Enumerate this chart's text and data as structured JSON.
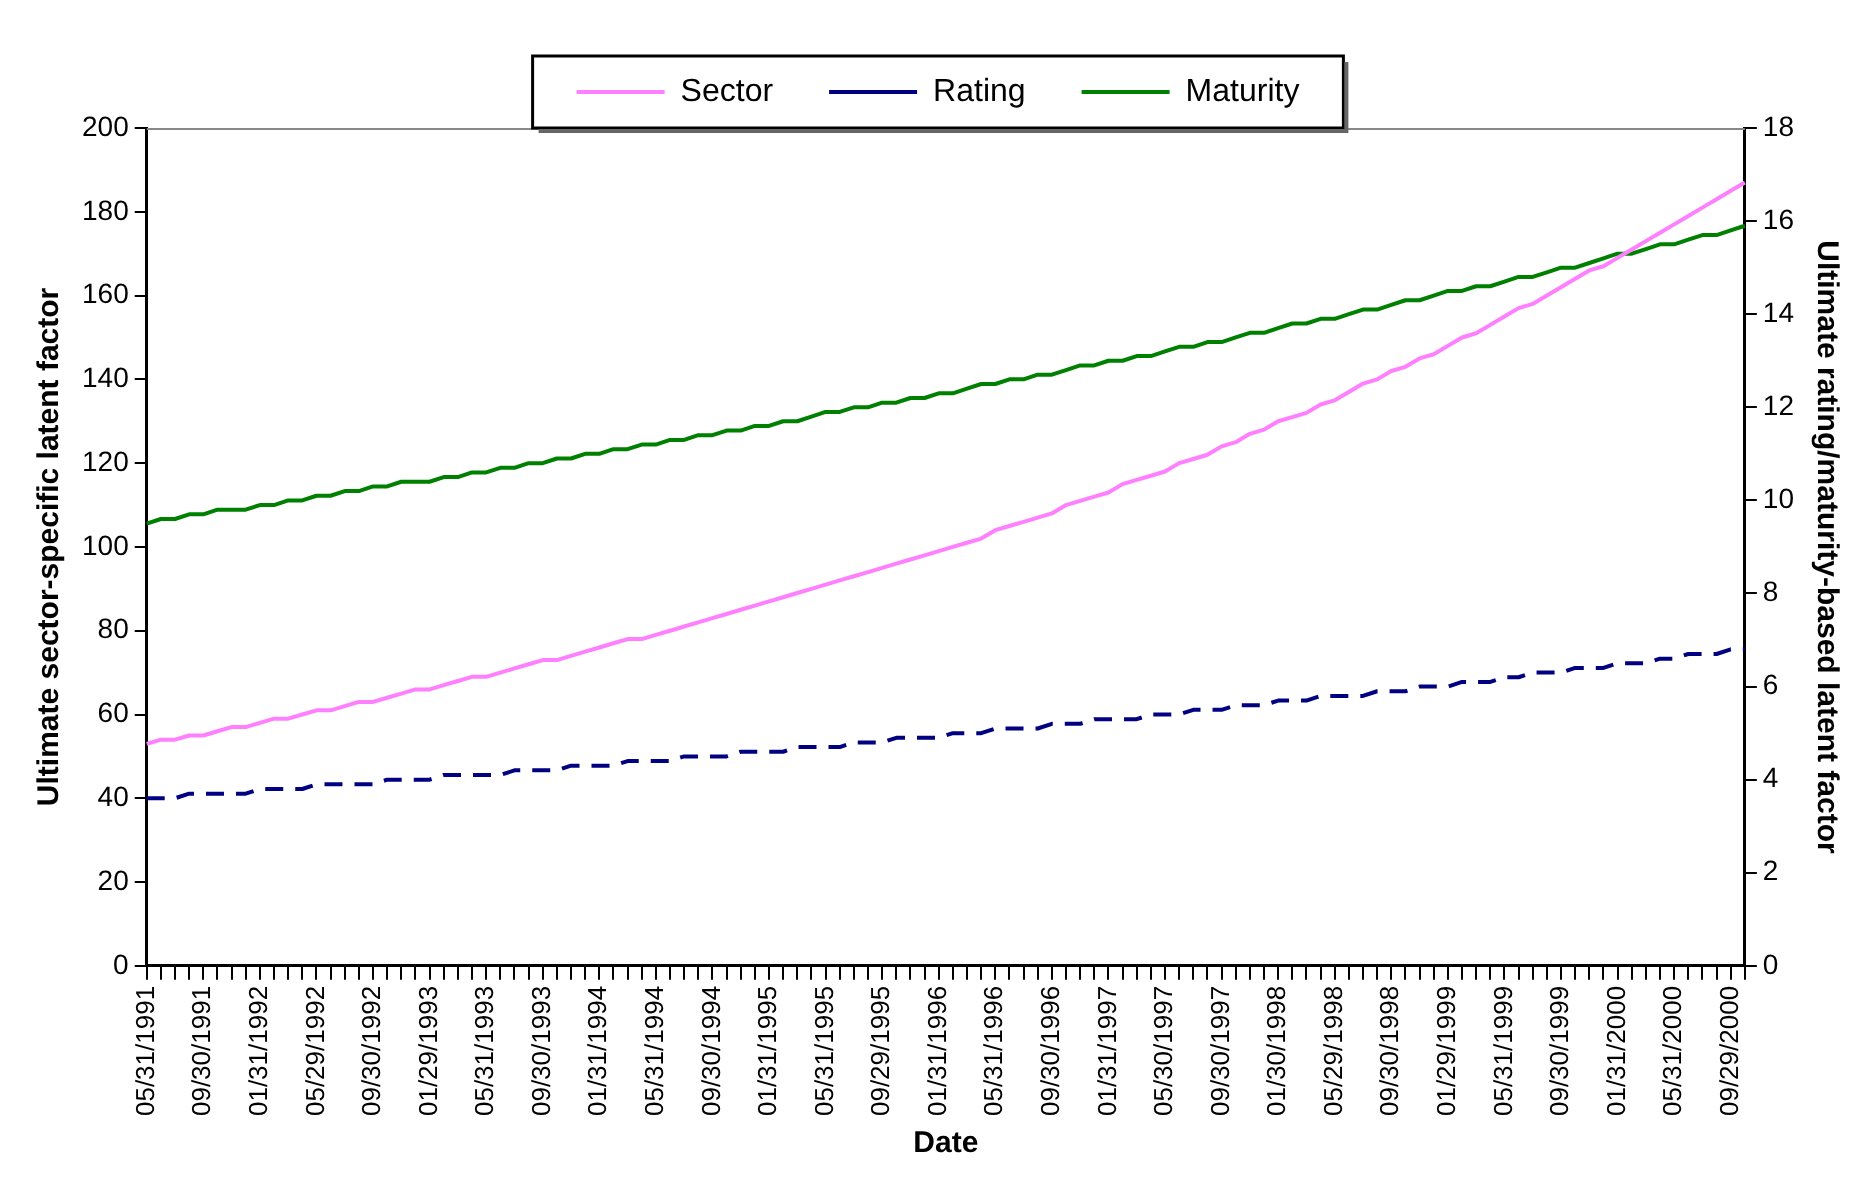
{
  "chart_data": {
    "type": "line",
    "xlabel": "Date",
    "ylabel": "Ultimate sector-specific latent factor",
    "y2label": "Ultimate rating/maturity-based latent factor",
    "categories": [
      "05/31/1991",
      null,
      null,
      null,
      "09/30/1991",
      null,
      null,
      null,
      "01/31/1992",
      null,
      null,
      null,
      "05/29/1992",
      null,
      null,
      null,
      "09/30/1992",
      null,
      null,
      null,
      "01/29/1993",
      null,
      null,
      null,
      "05/31/1993",
      null,
      null,
      null,
      "09/30/1993",
      null,
      null,
      null,
      "01/31/1994",
      null,
      null,
      null,
      "05/31/1994",
      null,
      null,
      null,
      "09/30/1994",
      null,
      null,
      null,
      "01/31/1995",
      null,
      null,
      null,
      "05/31/1995",
      null,
      null,
      null,
      "09/29/1995",
      null,
      null,
      null,
      "01/31/1996",
      null,
      null,
      null,
      "05/31/1996",
      null,
      null,
      null,
      "09/30/1996",
      null,
      null,
      null,
      "01/31/1997",
      null,
      null,
      null,
      "05/30/1997",
      null,
      null,
      null,
      "09/30/1997",
      null,
      null,
      null,
      "01/30/1998",
      null,
      null,
      null,
      "05/29/1998",
      null,
      null,
      null,
      "09/30/1998",
      null,
      null,
      null,
      "01/29/1999",
      null,
      null,
      null,
      "05/31/1999",
      null,
      null,
      null,
      "09/30/1999",
      null,
      null,
      null,
      "01/31/2000",
      null,
      null,
      null,
      "05/31/2000",
      null,
      null,
      null,
      "09/29/2000",
      null
    ],
    "series": [
      {
        "name": "Sector",
        "color": "#ff80ff",
        "line_style": "solid",
        "values": [
          53,
          54,
          54,
          55,
          55,
          56,
          57,
          57,
          58,
          59,
          59,
          60,
          61,
          61,
          62,
          63,
          63,
          64,
          65,
          66,
          66,
          67,
          68,
          69,
          69,
          70,
          71,
          72,
          73,
          73,
          74,
          75,
          76,
          77,
          78,
          78,
          79,
          80,
          81,
          82,
          83,
          84,
          85,
          86,
          87,
          88,
          89,
          90,
          91,
          92,
          93,
          94,
          95,
          96,
          97,
          98,
          99,
          100,
          101,
          102,
          104,
          105,
          106,
          107,
          108,
          110,
          111,
          112,
          113,
          115,
          116,
          117,
          118,
          120,
          121,
          122,
          124,
          125,
          127,
          128,
          130,
          131,
          132,
          134,
          135,
          137,
          139,
          140,
          142,
          143,
          145,
          146,
          148,
          150,
          151,
          153,
          155,
          157,
          158,
          160,
          162,
          164,
          166,
          167,
          169,
          171,
          173,
          175,
          177,
          179,
          181,
          183,
          185,
          187
        ]
      },
      {
        "name": "Rating",
        "color": "#000080",
        "axis": "y2",
        "line_style": "dashed",
        "values": [
          3.6,
          3.6,
          3.6,
          3.7,
          3.7,
          3.7,
          3.7,
          3.7,
          3.8,
          3.8,
          3.8,
          3.8,
          3.9,
          3.9,
          3.9,
          3.9,
          3.9,
          4.0,
          4.0,
          4.0,
          4.0,
          4.1,
          4.1,
          4.1,
          4.1,
          4.1,
          4.2,
          4.2,
          4.2,
          4.2,
          4.3,
          4.3,
          4.3,
          4.3,
          4.4,
          4.4,
          4.4,
          4.4,
          4.5,
          4.5,
          4.5,
          4.5,
          4.6,
          4.6,
          4.6,
          4.6,
          4.7,
          4.7,
          4.7,
          4.7,
          4.8,
          4.8,
          4.8,
          4.9,
          4.9,
          4.9,
          4.9,
          5.0,
          5.0,
          5.0,
          5.1,
          5.1,
          5.1,
          5.1,
          5.2,
          5.2,
          5.2,
          5.3,
          5.3,
          5.3,
          5.3,
          5.4,
          5.4,
          5.4,
          5.5,
          5.5,
          5.5,
          5.6,
          5.6,
          5.6,
          5.7,
          5.7,
          5.7,
          5.8,
          5.8,
          5.8,
          5.8,
          5.9,
          5.9,
          5.9,
          6.0,
          6.0,
          6.0,
          6.1,
          6.1,
          6.1,
          6.2,
          6.2,
          6.3,
          6.3,
          6.3,
          6.4,
          6.4,
          6.4,
          6.5,
          6.5,
          6.5,
          6.6,
          6.6,
          6.7,
          6.7,
          6.7,
          6.8,
          6.8
        ]
      },
      {
        "name": "Maturity",
        "color": "#008000",
        "axis": "y2",
        "line_style": "solid",
        "values": [
          9.5,
          9.6,
          9.6,
          9.7,
          9.7,
          9.8,
          9.8,
          9.8,
          9.9,
          9.9,
          10.0,
          10.0,
          10.1,
          10.1,
          10.2,
          10.2,
          10.3,
          10.3,
          10.4,
          10.4,
          10.4,
          10.5,
          10.5,
          10.6,
          10.6,
          10.7,
          10.7,
          10.8,
          10.8,
          10.9,
          10.9,
          11.0,
          11.0,
          11.1,
          11.1,
          11.2,
          11.2,
          11.3,
          11.3,
          11.4,
          11.4,
          11.5,
          11.5,
          11.6,
          11.6,
          11.7,
          11.7,
          11.8,
          11.9,
          11.9,
          12.0,
          12.0,
          12.1,
          12.1,
          12.2,
          12.2,
          12.3,
          12.3,
          12.4,
          12.5,
          12.5,
          12.6,
          12.6,
          12.7,
          12.7,
          12.8,
          12.9,
          12.9,
          13.0,
          13.0,
          13.1,
          13.1,
          13.2,
          13.3,
          13.3,
          13.4,
          13.4,
          13.5,
          13.6,
          13.6,
          13.7,
          13.8,
          13.8,
          13.9,
          13.9,
          14.0,
          14.1,
          14.1,
          14.2,
          14.3,
          14.3,
          14.4,
          14.5,
          14.5,
          14.6,
          14.6,
          14.7,
          14.8,
          14.8,
          14.9,
          15.0,
          15.0,
          15.1,
          15.2,
          15.3,
          15.3,
          15.4,
          15.5,
          15.5,
          15.6,
          15.7,
          15.7,
          15.8,
          15.9
        ]
      }
    ],
    "ylim": [
      0,
      200
    ],
    "yticks": [
      0,
      20,
      40,
      60,
      80,
      100,
      120,
      140,
      160,
      180,
      200
    ],
    "y2lim": [
      0,
      18
    ],
    "y2ticks": [
      0,
      2,
      4,
      6,
      8,
      10,
      12,
      14,
      16,
      18
    ],
    "grid": false,
    "legend": "top",
    "marker": "none"
  }
}
